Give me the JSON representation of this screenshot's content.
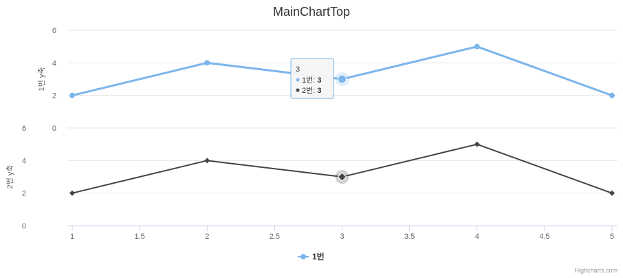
{
  "chart_data": {
    "type": "line",
    "title": "MainChartTop",
    "x": [
      1,
      2,
      3,
      4,
      5
    ],
    "x_ticks": [
      "1",
      "1.5",
      "2",
      "2.5",
      "3",
      "3.5",
      "4",
      "4.5",
      "5"
    ],
    "xlim": [
      1,
      5
    ],
    "panes": [
      {
        "ylabel": "1번 y축",
        "ylim": [
          0,
          6
        ],
        "y_ticks": [
          "0",
          "2",
          "4",
          "6"
        ],
        "series": [
          {
            "name": "1번",
            "values": [
              2,
              4,
              3,
              5,
              2
            ],
            "color": "#7cb5ec",
            "marker": "circle"
          }
        ]
      },
      {
        "ylabel": "2번 y축",
        "ylim": [
          0,
          6
        ],
        "y_ticks": [
          "0",
          "2",
          "4",
          "6"
        ],
        "series": [
          {
            "name": "2번",
            "values": [
              2,
              4,
              3,
              5,
              2
            ],
            "color": "#434348",
            "marker": "diamond"
          }
        ]
      }
    ],
    "legend": {
      "items": [
        "1번"
      ],
      "placement": "bottom-center"
    },
    "grid": true,
    "tooltip": {
      "header": "3",
      "rows": [
        {
          "label": "1번: ",
          "value": "3",
          "color": "#7cb5ec"
        },
        {
          "label": "2번: ",
          "value": "3",
          "color": "#434348"
        }
      ]
    },
    "credits": "Highcharts.com"
  }
}
